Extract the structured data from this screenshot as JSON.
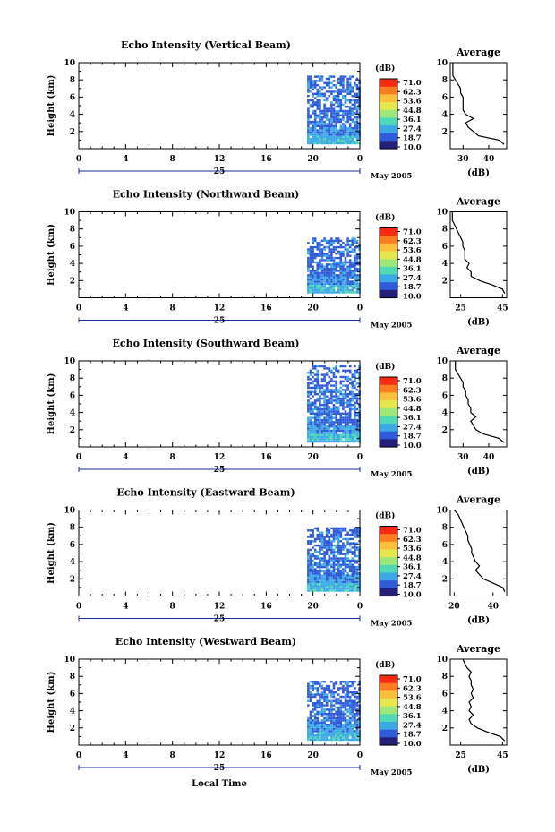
{
  "colorbar": {
    "unit": "(dB)",
    "ticks": [
      "71.0",
      "62.3",
      "53.6",
      "44.8",
      "36.1",
      "27.4",
      "18.7",
      "10.0"
    ],
    "colors": [
      "#f82a12",
      "#fb7d20",
      "#fbbf3a",
      "#e4e84a",
      "#9ee87a",
      "#4fd9b4",
      "#3ca8e6",
      "#2f5ad8",
      "#24207a"
    ]
  },
  "month_label": "May 2005",
  "day_label": "25",
  "bottom_xlabel": "Local Time",
  "chart_data": [
    {
      "type": "heatmap",
      "title": "Echo Intensity (Vertical Beam)",
      "ylabel": "Height (km)",
      "ylim": [
        0,
        10
      ],
      "yticks": [
        "2",
        "4",
        "6",
        "8",
        "10"
      ],
      "xlim": [
        0,
        24
      ],
      "xticks": [
        "0",
        "4",
        "8",
        "12",
        "16",
        "20",
        "0"
      ],
      "data_start_hour": 19.5,
      "data_top_km": 8.5,
      "layers": [
        {
          "from_km": 0.5,
          "to_km": 1.5,
          "db": 28
        },
        {
          "from_km": 1.5,
          "to_km": 2.5,
          "db": 22
        },
        {
          "from_km": 2.5,
          "to_km": 8.5,
          "db": 19
        }
      ],
      "profile": {
        "title": "Average",
        "xlabel": "(dB)",
        "xticks": [
          "30",
          "40"
        ],
        "xlim": [
          25,
          47
        ],
        "heights_km": [
          0.5,
          1.0,
          1.5,
          2.0,
          2.5,
          3.0,
          3.5,
          4.0,
          4.5,
          5.0,
          5.5,
          6.0,
          6.5,
          7.0,
          7.5,
          8.0,
          8.5,
          9.0,
          9.5,
          10.0
        ],
        "values_db": [
          46,
          44,
          36,
          34,
          32,
          31,
          34,
          31,
          30,
          30,
          30,
          30,
          29,
          29,
          28,
          27,
          26,
          26,
          26,
          26
        ]
      }
    },
    {
      "type": "heatmap",
      "title": "Echo Intensity (Northward Beam)",
      "ylabel": "Height (km)",
      "ylim": [
        0,
        10
      ],
      "yticks": [
        "2",
        "4",
        "6",
        "8",
        "10"
      ],
      "xlim": [
        0,
        24
      ],
      "xticks": [
        "0",
        "4",
        "8",
        "12",
        "16",
        "20",
        "0"
      ],
      "data_start_hour": 19.5,
      "data_top_km": 7.0,
      "layers": [
        {
          "from_km": 0.5,
          "to_km": 1.5,
          "db": 28
        },
        {
          "from_km": 1.5,
          "to_km": 2.5,
          "db": 22
        },
        {
          "from_km": 2.5,
          "to_km": 7.0,
          "db": 19
        }
      ],
      "profile": {
        "title": "Average",
        "xlabel": "(dB)",
        "xticks": [
          "25",
          "45"
        ],
        "xlim": [
          20,
          47
        ],
        "heights_km": [
          0.5,
          1.0,
          1.5,
          2.0,
          2.5,
          3.0,
          3.5,
          4.0,
          4.5,
          5.0,
          5.5,
          6.0,
          6.5,
          7.0,
          7.5,
          8.0,
          8.5,
          9.0,
          9.5,
          10.0
        ],
        "values_db": [
          46,
          45,
          40,
          34,
          30,
          30,
          28,
          29,
          27,
          27,
          27,
          26,
          26,
          25,
          24,
          23,
          22,
          21,
          21,
          21
        ]
      }
    },
    {
      "type": "heatmap",
      "title": "Echo Intensity (Southward Beam)",
      "ylabel": "Height (km)",
      "ylim": [
        0,
        10
      ],
      "yticks": [
        "2",
        "4",
        "6",
        "8",
        "10"
      ],
      "xlim": [
        0,
        24
      ],
      "xticks": [
        "0",
        "4",
        "8",
        "12",
        "16",
        "20",
        "0"
      ],
      "data_start_hour": 19.5,
      "data_top_km": 9.3,
      "layers": [
        {
          "from_km": 0.5,
          "to_km": 1.5,
          "db": 28
        },
        {
          "from_km": 1.5,
          "to_km": 2.5,
          "db": 22
        },
        {
          "from_km": 2.5,
          "to_km": 9.3,
          "db": 19
        }
      ],
      "profile": {
        "title": "Average",
        "xlabel": "(dB)",
        "xticks": [
          "30",
          "40"
        ],
        "xlim": [
          25,
          47
        ],
        "heights_km": [
          0.5,
          1.0,
          1.5,
          2.0,
          2.5,
          3.0,
          3.5,
          4.0,
          4.5,
          5.0,
          5.5,
          6.0,
          6.5,
          7.0,
          7.5,
          8.0,
          8.5,
          9.0,
          9.5,
          10.0
        ],
        "values_db": [
          46,
          44,
          38,
          35,
          34,
          33,
          35,
          33,
          33,
          32,
          32,
          31,
          31,
          30,
          30,
          29,
          28,
          27,
          27,
          27
        ]
      }
    },
    {
      "type": "heatmap",
      "title": "Echo Intensity (Eastward Beam)",
      "ylabel": "Height (km)",
      "ylim": [
        0,
        10
      ],
      "yticks": [
        "2",
        "4",
        "6",
        "8",
        "10"
      ],
      "xlim": [
        0,
        24
      ],
      "xticks": [
        "0",
        "4",
        "8",
        "12",
        "16",
        "20",
        "0"
      ],
      "data_start_hour": 19.5,
      "data_top_km": 8.0,
      "layers": [
        {
          "from_km": 0.5,
          "to_km": 1.5,
          "db": 28
        },
        {
          "from_km": 1.5,
          "to_km": 2.5,
          "db": 22
        },
        {
          "from_km": 2.5,
          "to_km": 8.0,
          "db": 19
        }
      ],
      "profile": {
        "title": "Average",
        "xlabel": "(dB)",
        "xticks": [
          "20",
          "40"
        ],
        "xlim": [
          18,
          47
        ],
        "heights_km": [
          0.5,
          1.0,
          1.5,
          2.0,
          2.5,
          3.0,
          3.5,
          4.0,
          4.5,
          5.0,
          5.5,
          6.0,
          6.5,
          7.0,
          7.5,
          8.0,
          8.5,
          9.0,
          9.5,
          10.0
        ],
        "values_db": [
          46,
          45,
          40,
          35,
          33,
          31,
          33,
          31,
          30,
          29,
          29,
          28,
          27,
          27,
          26,
          25,
          24,
          23,
          22,
          20
        ]
      }
    },
    {
      "type": "heatmap",
      "title": "Echo Intensity (Westward Beam)",
      "ylabel": "Height (km)",
      "ylim": [
        0,
        10
      ],
      "yticks": [
        "2",
        "4",
        "6",
        "8",
        "10"
      ],
      "xlim": [
        0,
        24
      ],
      "xticks": [
        "0",
        "4",
        "8",
        "12",
        "16",
        "20",
        "0"
      ],
      "data_start_hour": 19.5,
      "data_top_km": 7.5,
      "layers": [
        {
          "from_km": 0.5,
          "to_km": 1.5,
          "db": 28
        },
        {
          "from_km": 1.5,
          "to_km": 2.5,
          "db": 22
        },
        {
          "from_km": 2.5,
          "to_km": 7.5,
          "db": 19
        }
      ],
      "profile": {
        "title": "Average",
        "xlabel": "(dB)",
        "xticks": [
          "25",
          "45"
        ],
        "xlim": [
          20,
          47
        ],
        "heights_km": [
          0.5,
          1.0,
          1.5,
          2.0,
          2.5,
          3.0,
          3.5,
          4.0,
          4.5,
          5.0,
          5.5,
          6.0,
          6.5,
          7.0,
          7.5,
          8.0,
          8.5,
          9.0,
          9.5,
          10.0
        ],
        "values_db": [
          46,
          44,
          38,
          33,
          30,
          29,
          31,
          29,
          30,
          29,
          31,
          30,
          31,
          30,
          30,
          29,
          30,
          28,
          27,
          26
        ]
      }
    }
  ]
}
